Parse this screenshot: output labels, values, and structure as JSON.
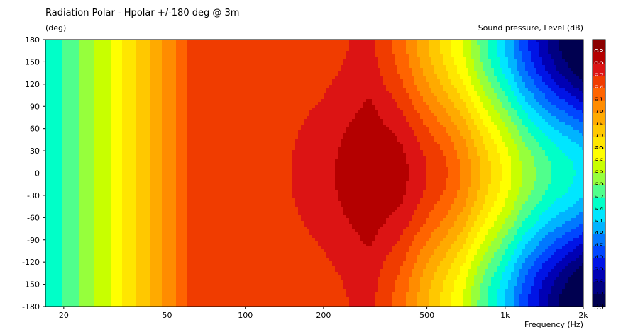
{
  "chart_data": {
    "type": "heatmap",
    "title": "Radiation Polar - Hpolar +/-180 deg @ 3m",
    "ylabel": "(deg)",
    "xlabel": "Frequency  (Hz)",
    "colorbar_label": "Sound pressure, Level  (dB)",
    "x_scale": "log",
    "xlim": [
      17,
      2000
    ],
    "ylim": [
      -180,
      180
    ],
    "x_ticks": [
      {
        "value": 20,
        "label": "20"
      },
      {
        "value": 50,
        "label": "50"
      },
      {
        "value": 100,
        "label": "100"
      },
      {
        "value": 200,
        "label": "200"
      },
      {
        "value": 500,
        "label": "500"
      },
      {
        "value": 1000,
        "label": "1k"
      },
      {
        "value": 2000,
        "label": "2k"
      }
    ],
    "y_ticks": [
      180,
      150,
      120,
      90,
      60,
      30,
      0,
      -30,
      -60,
      -90,
      -120,
      -150,
      -180
    ],
    "colorbar_levels": [
      93,
      90,
      87,
      84,
      81,
      78,
      75,
      72,
      69,
      66,
      63,
      60,
      57,
      54,
      51,
      48,
      45,
      42,
      39,
      36,
      33,
      30
    ],
    "colorbar_colors": [
      "#8b0000",
      "#b40000",
      "#dc1414",
      "#f03c00",
      "#ff6400",
      "#ff8c00",
      "#ffaa00",
      "#ffc800",
      "#ffe600",
      "#ffff00",
      "#c8ff00",
      "#96ff3c",
      "#50ff8c",
      "#00ffc8",
      "#00e6ff",
      "#00b4ff",
      "#0078ff",
      "#0046ff",
      "#0014e6",
      "#0000b4",
      "#000082",
      "#000050"
    ],
    "on_axis_response": {
      "frequency_hz": [
        17,
        20,
        30,
        40,
        50,
        60,
        65,
        100,
        150,
        200,
        300,
        400,
        500,
        600,
        700,
        800,
        1000,
        1200,
        1500,
        2000
      ],
      "level_db": [
        55,
        57,
        66,
        73,
        79,
        84,
        86,
        86,
        87,
        89,
        93,
        91,
        87,
        84,
        80,
        75,
        68,
        62,
        57,
        53
      ]
    },
    "directivity_drop_db_at_180deg": {
      "frequency_hz": [
        17,
        65,
        150,
        300,
        600,
        1000,
        1500,
        2000
      ],
      "drop_db": [
        0,
        0,
        2,
        5,
        14,
        17,
        22,
        26
      ]
    }
  }
}
